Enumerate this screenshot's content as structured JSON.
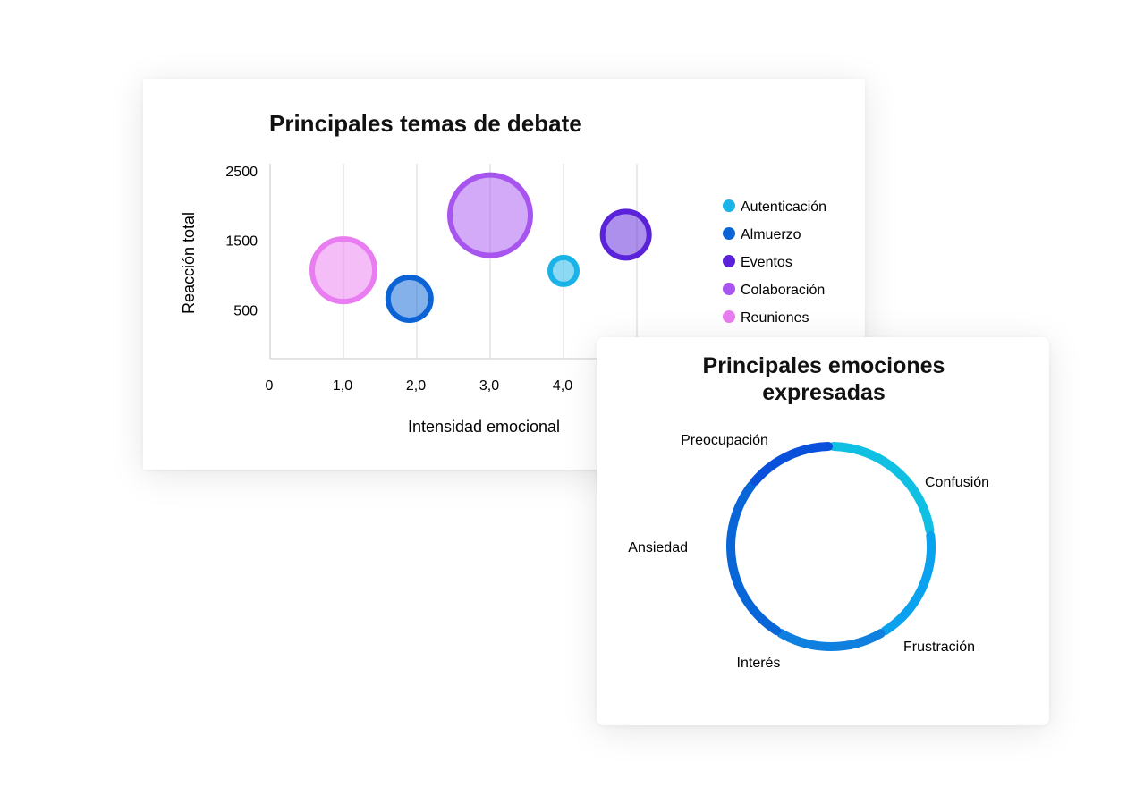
{
  "chart_data": [
    {
      "type": "scatter",
      "title": "Principales temas de debate",
      "xlabel": "Intensidad emocional",
      "ylabel": "Reacción total",
      "x_ticks": [
        "0",
        "1,0",
        "2,0",
        "3,0",
        "4,0"
      ],
      "y_ticks": [
        "2500",
        "1500",
        "500"
      ],
      "xlim": [
        0,
        5
      ],
      "ylim": [
        -200,
        2600
      ],
      "grid": "vertical",
      "legend_position": "right",
      "series": [
        {
          "name": "Autenticación",
          "color": "#1ab3e8",
          "x": 4.0,
          "y": 1060,
          "size": 18
        },
        {
          "name": "Almuerzo",
          "color": "#0b63d6",
          "x": 1.9,
          "y": 660,
          "size": 27
        },
        {
          "name": "Eventos",
          "color": "#5a22d9",
          "x": 4.85,
          "y": 1580,
          "size": 29
        },
        {
          "name": "Colaboración",
          "color": "#a855f0",
          "x": 3.0,
          "y": 1860,
          "size": 48
        },
        {
          "name": "Reuniones",
          "color": "#e97cf0",
          "x": 1.0,
          "y": 1070,
          "size": 38
        }
      ]
    },
    {
      "type": "pie",
      "title_lines": [
        "Principales emociones",
        "expresadas"
      ],
      "donut": true,
      "slices": [
        {
          "label": "Confusión",
          "value": 21,
          "color": "#10c0e2"
        },
        {
          "label": "Frustración",
          "value": 17,
          "color": "#0aa1ee"
        },
        {
          "label": "Interés",
          "value": 16,
          "color": "#0f7fe0"
        },
        {
          "label": "Ansiedad",
          "value": 25,
          "color": "#0866d9"
        },
        {
          "label": "Preocupación",
          "value": 13,
          "color": "#0950db"
        }
      ]
    }
  ]
}
